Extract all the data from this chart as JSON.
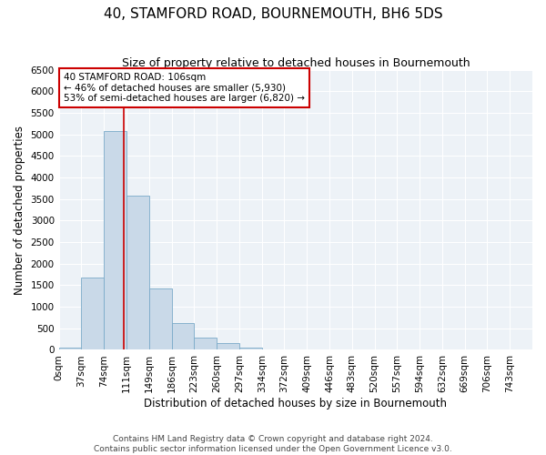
{
  "title": "40, STAMFORD ROAD, BOURNEMOUTH, BH6 5DS",
  "subtitle": "Size of property relative to detached houses in Bournemouth",
  "xlabel": "Distribution of detached houses by size in Bournemouth",
  "ylabel": "Number of detached properties",
  "bin_labels": [
    "0sqm",
    "37sqm",
    "74sqm",
    "111sqm",
    "149sqm",
    "186sqm",
    "223sqm",
    "260sqm",
    "297sqm",
    "334sqm",
    "372sqm",
    "409sqm",
    "446sqm",
    "483sqm",
    "520sqm",
    "557sqm",
    "594sqm",
    "632sqm",
    "669sqm",
    "706sqm",
    "743sqm"
  ],
  "bar_heights": [
    50,
    1680,
    5080,
    3580,
    1420,
    620,
    290,
    150,
    50,
    10,
    0,
    0,
    0,
    0,
    0,
    0,
    0,
    0,
    0,
    0,
    0
  ],
  "bar_color": "#c9d9e8",
  "bar_edge_color": "#7aaac8",
  "vline_bin_index": 2.865,
  "ylim": [
    0,
    6500
  ],
  "yticks": [
    0,
    500,
    1000,
    1500,
    2000,
    2500,
    3000,
    3500,
    4000,
    4500,
    5000,
    5500,
    6000,
    6500
  ],
  "annotation_line1": "40 STAMFORD ROAD: 106sqm",
  "annotation_line2": "← 46% of detached houses are smaller (5,930)",
  "annotation_line3": "53% of semi-detached houses are larger (6,820) →",
  "annotation_box_color": "#ffffff",
  "annotation_box_edgecolor": "#cc0000",
  "vline_color": "#cc0000",
  "footer_line1": "Contains HM Land Registry data © Crown copyright and database right 2024.",
  "footer_line2": "Contains public sector information licensed under the Open Government Licence v3.0.",
  "background_color": "#edf2f7",
  "grid_color": "#ffffff",
  "title_fontsize": 11,
  "subtitle_fontsize": 9,
  "axis_label_fontsize": 8.5,
  "tick_fontsize": 7.5,
  "footer_fontsize": 6.5
}
